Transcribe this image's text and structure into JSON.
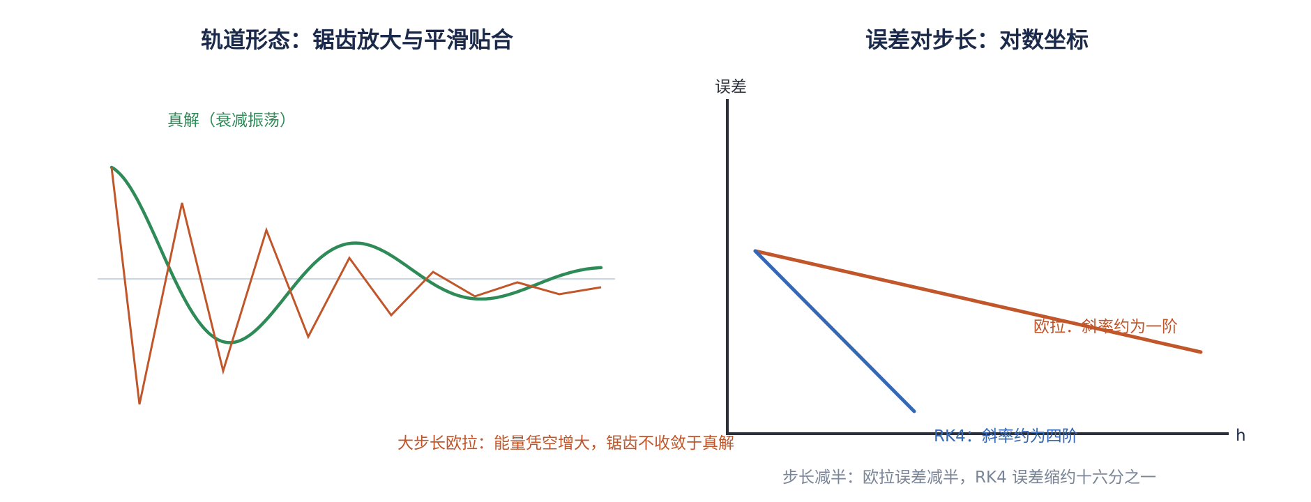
{
  "left_panel": {
    "title": "轨道形态：锯齿放大与平滑贴合",
    "true_solution_label": "真解（衰减振荡）",
    "euler_caption": "大步长欧拉：能量凭空增大，锯齿不收敛于真解",
    "colors": {
      "true_solution": "#2e8b57",
      "euler": "#c0562a",
      "zero_line": "#b8c8dc"
    }
  },
  "right_panel": {
    "title": "误差对步长：对数坐标",
    "y_axis_label": "误差",
    "x_axis_label": "h",
    "euler_label": "欧拉：斜率约为一阶",
    "rk4_label": "RK4：斜率约为四阶",
    "footer": "步长减半：欧拉误差减半，RK4 误差缩约十六分之一",
    "colors": {
      "axis": "#2b2f3a",
      "euler": "#c0562a",
      "rk4": "#3468b5",
      "footer": "#7a8597"
    }
  }
}
